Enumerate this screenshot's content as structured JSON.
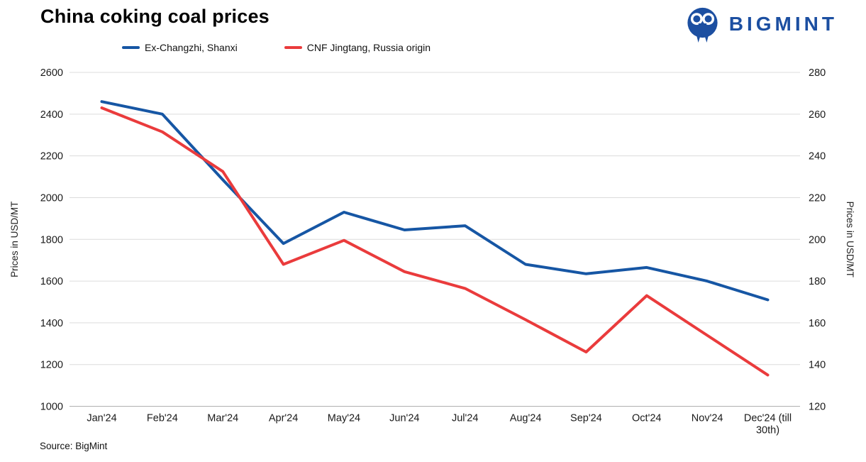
{
  "title": "China coking coal prices",
  "logo": {
    "text": "BIGMINT"
  },
  "source": "Source: BigMint",
  "colors": {
    "blue_series": "#1656A4",
    "red_series": "#EA3B3C",
    "logo": "#1C4FA1",
    "gridline": "#DCDCDC",
    "axis_line": "#AFAFAF",
    "tick_text": "#1A1A1A"
  },
  "chart_data": {
    "type": "line",
    "title": "China coking coal prices",
    "categories": [
      "Jan'24",
      "Feb'24",
      "Mar'24",
      "Apr'24",
      "May'24",
      "Jun'24",
      "Jul'24",
      "Aug'24",
      "Sep'24",
      "Oct'24",
      "Nov'24",
      "Dec'24 (till\n30th)"
    ],
    "series": [
      {
        "name": "Ex-Changzhi, Shanxi",
        "axis": "left",
        "color": "#1656A4",
        "values": [
          2460,
          2400,
          2085,
          1780,
          1930,
          1845,
          1865,
          1680,
          1635,
          1665,
          1600,
          1510
        ]
      },
      {
        "name": "CNF Jingtang, Russia origin",
        "axis": "right",
        "color": "#EA3B3C",
        "values": [
          263,
          251.5,
          232.5,
          188,
          199.5,
          184.5,
          176.5,
          161.5,
          146,
          173,
          154,
          135
        ]
      }
    ],
    "left_axis": {
      "label": "Prices in USD/MT",
      "min": 1000,
      "max": 2600,
      "step": 200
    },
    "right_axis": {
      "label": "Prices in USD/MT",
      "min": 120,
      "max": 280,
      "step": 20
    },
    "grid": true,
    "legend_position": "top"
  }
}
